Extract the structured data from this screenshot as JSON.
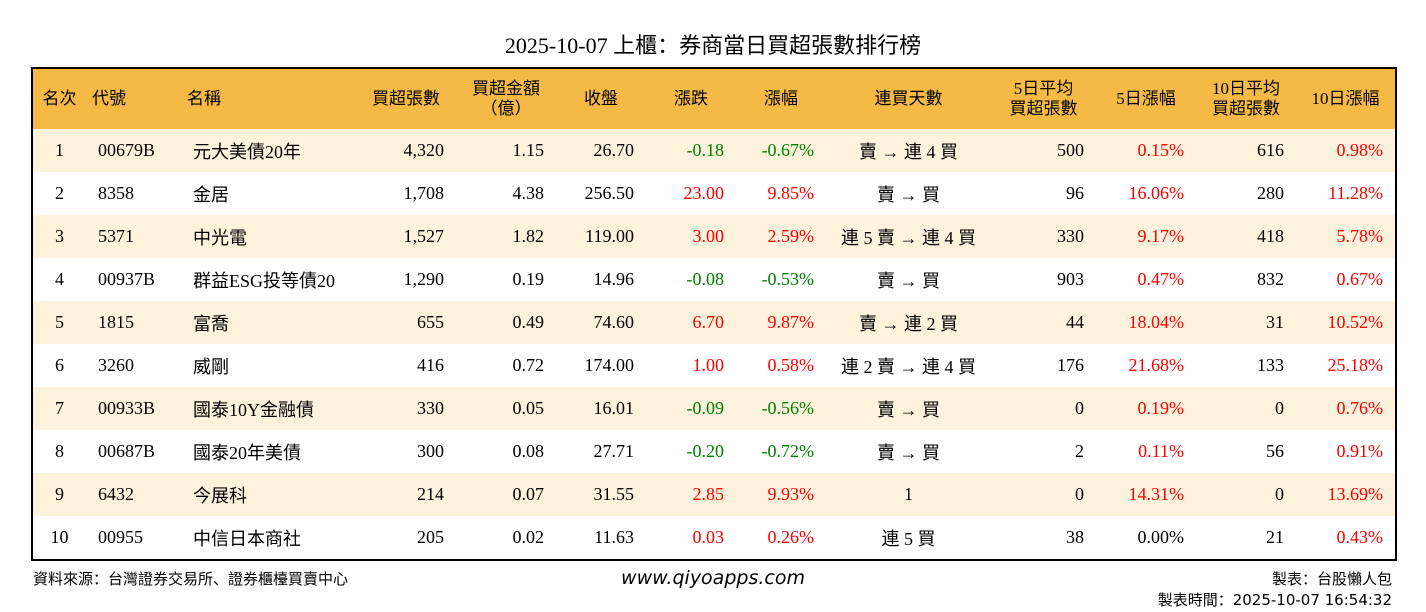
{
  "title": "2025-10-07 上櫃：券商當日買超張數排行榜",
  "table": {
    "header": [
      "名次",
      "代號",
      "名稱",
      "買超張數",
      "買超金額\n（億）",
      "收盤",
      "漲跌",
      "漲幅",
      "連買天數",
      "5日平均\n買超張數",
      "5日漲幅",
      "10日平均\n買超張數",
      "10日漲幅"
    ],
    "rows": [
      [
        "1",
        "00679B",
        "元大美債20年",
        "4,320",
        "1.15",
        "26.70",
        "-0.18",
        "-0.67%",
        "賣 → 連 4 買",
        "500",
        "0.15%",
        "616",
        "0.98%"
      ],
      [
        "2",
        "8358",
        "金居",
        "1,708",
        "4.38",
        "256.50",
        "23.00",
        "9.85%",
        "賣 → 買",
        "96",
        "16.06%",
        "280",
        "11.28%"
      ],
      [
        "3",
        "5371",
        "中光電",
        "1,527",
        "1.82",
        "119.00",
        "3.00",
        "2.59%",
        "連 5 賣 → 連 4 買",
        "330",
        "9.17%",
        "418",
        "5.78%"
      ],
      [
        "4",
        "00937B",
        "群益ESG投等債20",
        "1,290",
        "0.19",
        "14.96",
        "-0.08",
        "-0.53%",
        "賣 → 買",
        "903",
        "0.47%",
        "832",
        "0.67%"
      ],
      [
        "5",
        "1815",
        "富喬",
        "655",
        "0.49",
        "74.60",
        "6.70",
        "9.87%",
        "賣 → 連 2 買",
        "44",
        "18.04%",
        "31",
        "10.52%"
      ],
      [
        "6",
        "3260",
        "威剛",
        "416",
        "0.72",
        "174.00",
        "1.00",
        "0.58%",
        "連 2 賣 → 連 4 買",
        "176",
        "21.68%",
        "133",
        "25.18%"
      ],
      [
        "7",
        "00933B",
        "國泰10Y金融債",
        "330",
        "0.05",
        "16.01",
        "-0.09",
        "-0.56%",
        "賣 → 買",
        "0",
        "0.19%",
        "0",
        "0.76%"
      ],
      [
        "8",
        "00687B",
        "國泰20年美債",
        "300",
        "0.08",
        "27.71",
        "-0.20",
        "-0.72%",
        "賣 → 買",
        "2",
        "0.11%",
        "56",
        "0.91%"
      ],
      [
        "9",
        "6432",
        "今展科",
        "214",
        "0.07",
        "31.55",
        "2.85",
        "9.93%",
        "1",
        "0",
        "14.31%",
        "0",
        "13.69%"
      ],
      [
        "10",
        "00955",
        "中信日本商社",
        "205",
        "0.02",
        "11.63",
        "0.03",
        "0.26%",
        "連 5 買",
        "38",
        "0.00%",
        "21",
        "0.43%"
      ]
    ]
  },
  "footer": {
    "source": "資料來源：台灣證券交易所、證券櫃檯買賣中心",
    "website": "www.qiyoapps.com",
    "maker": "製表：台股懶人包",
    "time": "製表時間：2025-10-07 16:54:32"
  }
}
